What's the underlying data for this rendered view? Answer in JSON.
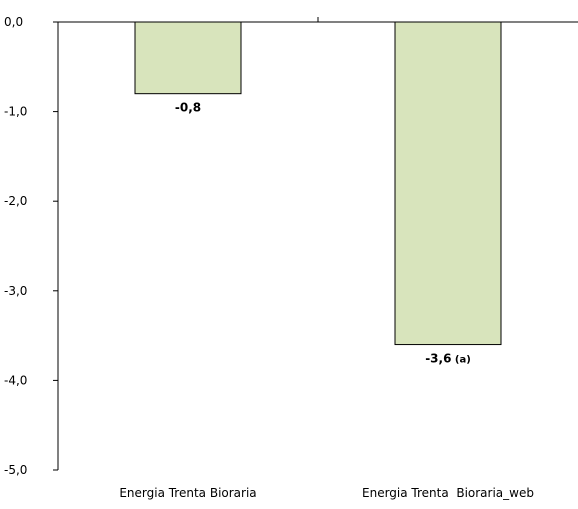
{
  "chart_data": {
    "type": "bar",
    "categories": [
      "Energia Trenta Bioraria",
      "Energia Trenta  Bioraria_web"
    ],
    "values": [
      -0.8,
      -3.6
    ],
    "data_labels": [
      "-0,8",
      "-3,6"
    ],
    "data_label_notes": [
      "",
      "(a)"
    ],
    "ylim": [
      -5.0,
      0.0
    ],
    "yticks": [
      0.0,
      -1.0,
      -2.0,
      -3.0,
      -4.0,
      -5.0
    ],
    "ytick_labels": [
      "0,0",
      "-1,0",
      "-2,0",
      "-3,0",
      "-4,0",
      "-5,0"
    ],
    "title": "",
    "xlabel": "",
    "ylabel": "",
    "grid": false,
    "legend": "none",
    "colors": {
      "bar_fill": "#d8e4bc",
      "bar_stroke": "#000000",
      "axis": "#000000"
    }
  }
}
